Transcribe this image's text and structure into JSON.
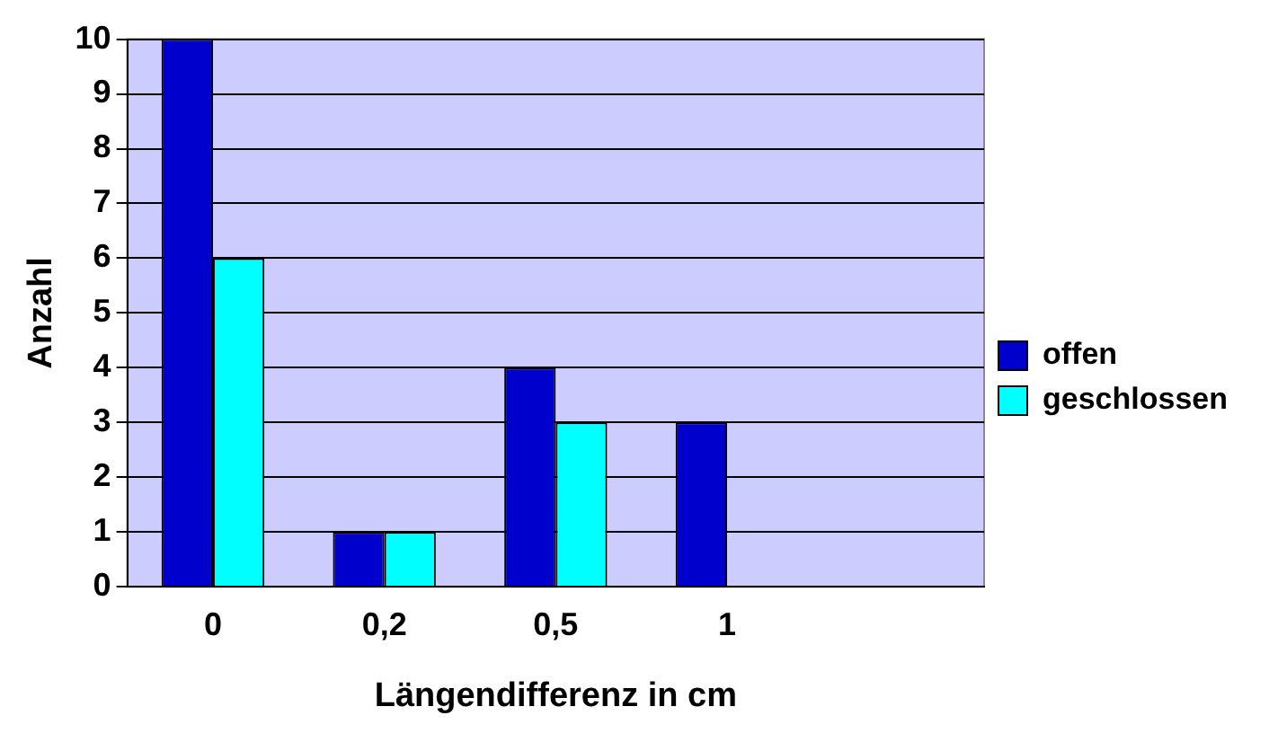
{
  "chart_data": {
    "type": "bar",
    "xlabel": "Längendifferenz in cm",
    "ylabel": "Anzahl",
    "categories": [
      "0",
      "0,2",
      "0,5",
      "1",
      null
    ],
    "series": [
      {
        "name": "offen",
        "color": "#0000cc",
        "values": [
          10,
          1,
          4,
          3,
          null
        ]
      },
      {
        "name": "geschlossen",
        "color": "#00ffff",
        "values": [
          6,
          1,
          3,
          null,
          null
        ]
      }
    ],
    "ylim": [
      0,
      10
    ],
    "yticks": [
      0,
      1,
      2,
      3,
      4,
      5,
      6,
      7,
      8,
      9,
      10
    ],
    "grid": "y",
    "legend": "right"
  }
}
